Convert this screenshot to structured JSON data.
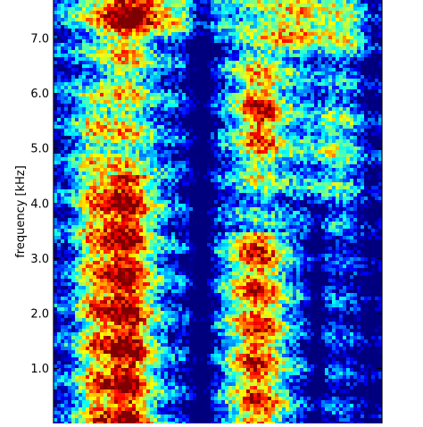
{
  "chart_data": {
    "type": "heatmap",
    "title": "",
    "xlabel": "",
    "ylabel": "frequency [kHz]",
    "ylim": [
      0.0,
      7.7
    ],
    "y_ticks": [
      1.0,
      2.0,
      3.0,
      4.0,
      5.0,
      6.0,
      7.0
    ],
    "y_tick_labels": [
      "1.0",
      "2.0",
      "3.0",
      "4.0",
      "5.0",
      "6.0",
      "7.0"
    ],
    "colormap": "jet",
    "colormap_stops": [
      "#00007f",
      "#0000ff",
      "#0080ff",
      "#00ffff",
      "#80ff80",
      "#ffff00",
      "#ff8000",
      "#ff0000",
      "#7f0000"
    ],
    "grid": false,
    "legend": "none"
  }
}
